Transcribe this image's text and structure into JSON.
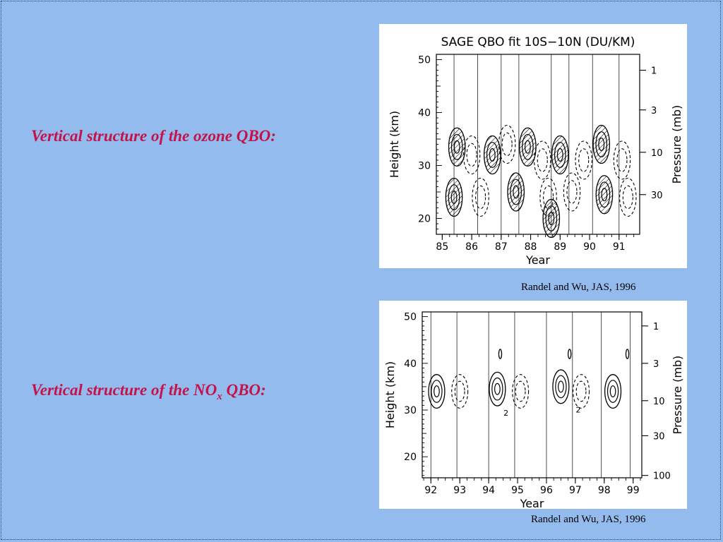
{
  "slide": {
    "heading_ozone": "Vertical structure of the ozone QBO:",
    "heading_nox_pre": "Vertical structure of the NO",
    "heading_nox_sub": "x",
    "heading_nox_post": " QBO:",
    "caption_top": "Randel and Wu, JAS, 1996",
    "caption_bottom": "Randel and Wu, JAS, 1996",
    "colors": {
      "background": "#94bbed",
      "heading": "#c4124a"
    }
  },
  "chart_data": [
    {
      "type": "contour",
      "title": "SAGE QBO fit 10S−10N (DU/KM)",
      "xlabel": "Year",
      "ylabel": "Height (km)",
      "ylabel_right": "Pressure (mb)",
      "xlim": [
        84.8,
        91.7
      ],
      "ylim": [
        17,
        51
      ],
      "x_ticks": [
        85,
        86,
        87,
        88,
        89,
        90,
        91
      ],
      "x_tick_labels": [
        "85",
        "86",
        "87",
        "88",
        "89",
        "90",
        "91"
      ],
      "y_ticks": [
        20,
        30,
        40,
        50
      ],
      "y_tick_labels": [
        "20",
        "30",
        "40",
        "50"
      ],
      "pressure_ticks": [
        {
          "label": "1",
          "height": 48
        },
        {
          "label": "3",
          "height": 40.5
        },
        {
          "label": "10",
          "height": 32.5
        },
        {
          "label": "30",
          "height": 24.5
        }
      ],
      "vertical_lines": [
        85.4,
        86.2,
        87.0,
        87.6,
        88.7,
        89.3,
        90.1,
        91.0
      ],
      "features": [
        {
          "sign": "positive",
          "x": 85.5,
          "y": 33.5
        },
        {
          "sign": "positive",
          "x": 86.7,
          "y": 32
        },
        {
          "sign": "positive",
          "x": 87.9,
          "y": 33.5
        },
        {
          "sign": "positive",
          "x": 89.0,
          "y": 32
        },
        {
          "sign": "positive",
          "x": 90.4,
          "y": 34
        },
        {
          "sign": "positive",
          "x": 85.4,
          "y": 24
        },
        {
          "sign": "positive",
          "x": 87.5,
          "y": 25
        },
        {
          "sign": "positive",
          "x": 88.7,
          "y": 20
        },
        {
          "sign": "positive",
          "x": 90.5,
          "y": 24.5
        },
        {
          "sign": "negative",
          "x": 86.0,
          "y": 32
        },
        {
          "sign": "negative",
          "x": 87.2,
          "y": 34
        },
        {
          "sign": "negative",
          "x": 88.4,
          "y": 31
        },
        {
          "sign": "negative",
          "x": 89.8,
          "y": 31
        },
        {
          "sign": "negative",
          "x": 91.1,
          "y": 31
        },
        {
          "sign": "negative",
          "x": 86.3,
          "y": 24
        },
        {
          "sign": "negative",
          "x": 88.6,
          "y": 24
        },
        {
          "sign": "negative",
          "x": 89.4,
          "y": 25
        },
        {
          "sign": "negative",
          "x": 91.3,
          "y": 24
        }
      ],
      "legend": "none",
      "grid": false
    },
    {
      "type": "contour",
      "title": "",
      "xlabel": "Year",
      "ylabel": "Height (km)",
      "ylabel_right": "Pressure (mb)",
      "xlim": [
        91.7,
        99.3
      ],
      "ylim": [
        15.5,
        51
      ],
      "x_ticks": [
        92,
        93,
        94,
        95,
        96,
        97,
        98,
        99
      ],
      "x_tick_labels": [
        "92",
        "93",
        "94",
        "95",
        "96",
        "97",
        "98",
        "99"
      ],
      "y_ticks": [
        20,
        30,
        40,
        50
      ],
      "y_tick_labels": [
        "20",
        "30",
        "40",
        "50"
      ],
      "pressure_ticks": [
        {
          "label": "1",
          "height": 48
        },
        {
          "label": "3",
          "height": 40
        },
        {
          "label": "10",
          "height": 32
        },
        {
          "label": "30",
          "height": 24.5
        },
        {
          "label": "100",
          "height": 16
        }
      ],
      "vertical_lines": [
        92.0,
        92.9,
        94.0,
        94.9,
        96.0,
        96.9,
        97.9,
        98.9
      ],
      "features": [
        {
          "sign": "positive",
          "x": 92.2,
          "y": 34
        },
        {
          "sign": "negative",
          "x": 93.0,
          "y": 34
        },
        {
          "sign": "positive",
          "x": 94.3,
          "y": 34.5
        },
        {
          "sign": "negative",
          "x": 95.1,
          "y": 34
        },
        {
          "sign": "positive",
          "x": 96.5,
          "y": 35
        },
        {
          "sign": "negative",
          "x": 97.2,
          "y": 34
        },
        {
          "sign": "positive",
          "x": 98.3,
          "y": 34
        },
        {
          "sign": "positive",
          "x": 94.4,
          "y": 42
        },
        {
          "sign": "positive",
          "x": 96.8,
          "y": 42
        },
        {
          "sign": "positive",
          "x": 98.8,
          "y": 42
        }
      ],
      "contour_labels": [
        {
          "text": "2",
          "x": 94.6,
          "y": 28.8
        },
        {
          "text": "2",
          "x": 97.1,
          "y": 29.5
        }
      ],
      "legend": "none",
      "grid": false
    }
  ]
}
